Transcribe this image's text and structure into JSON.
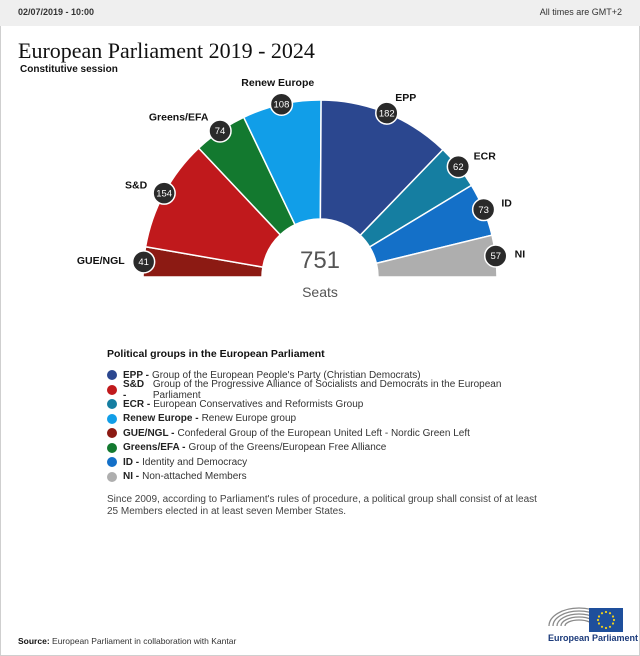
{
  "header": {
    "date": "02/07/2019 - 10:00",
    "timezone": "All times are GMT+2"
  },
  "title": "European Parliament 2019 - 2024",
  "subtitle": "Constitutive session",
  "chart_data": {
    "type": "parliament-hemicycle",
    "title": "European Parliament 2019 - 2024",
    "total": 751,
    "total_label": "Seats",
    "series": [
      {
        "name": "GUE/NGL",
        "value": 41,
        "color": "#8c1a13"
      },
      {
        "name": "S&D",
        "value": 154,
        "color": "#c0191c"
      },
      {
        "name": "Greens/EFA",
        "value": 74,
        "color": "#13792f"
      },
      {
        "name": "Renew Europe",
        "value": 108,
        "color": "#119ee8"
      },
      {
        "name": "EPP",
        "value": 182,
        "color": "#2b478f"
      },
      {
        "name": "ECR",
        "value": 62,
        "color": "#157ea1"
      },
      {
        "name": "ID",
        "value": 73,
        "color": "#1470c8"
      },
      {
        "name": "NI",
        "value": 57,
        "color": "#aeaeae"
      }
    ]
  },
  "legend": {
    "title": "Political groups in the European Parliament",
    "items": [
      {
        "abbr": "EPP -",
        "desc": "Group of the European People's Party (Christian Democrats)",
        "color": "#2b478f"
      },
      {
        "abbr": "S&D -",
        "desc": "Group of the Progressive Alliance of Socialists and Democrats in the European Parliament",
        "color": "#c0191c"
      },
      {
        "abbr": "ECR -",
        "desc": "European Conservatives and Reformists Group",
        "color": "#157ea1"
      },
      {
        "abbr": "Renew Europe -",
        "desc": "Renew Europe group",
        "color": "#119ee8"
      },
      {
        "abbr": "GUE/NGL -",
        "desc": "Confederal Group of the European United Left - Nordic Green Left",
        "color": "#8c1a13"
      },
      {
        "abbr": "Greens/EFA -",
        "desc": "Group of the Greens/European Free Alliance",
        "color": "#13792f"
      },
      {
        "abbr": "ID -",
        "desc": "Identity and Democracy",
        "color": "#1470c8"
      },
      {
        "abbr": "NI -",
        "desc": "Non-attached Members",
        "color": "#aeaeae"
      }
    ],
    "note": "Since 2009, according to Parliament's rules of procedure, a political group shall consist of at least 25 Members elected in at least seven Member States."
  },
  "footer": {
    "source_label": "Source:",
    "source_text": "European Parliament in collaboration with Kantar",
    "logo_text": "European Parliament"
  }
}
